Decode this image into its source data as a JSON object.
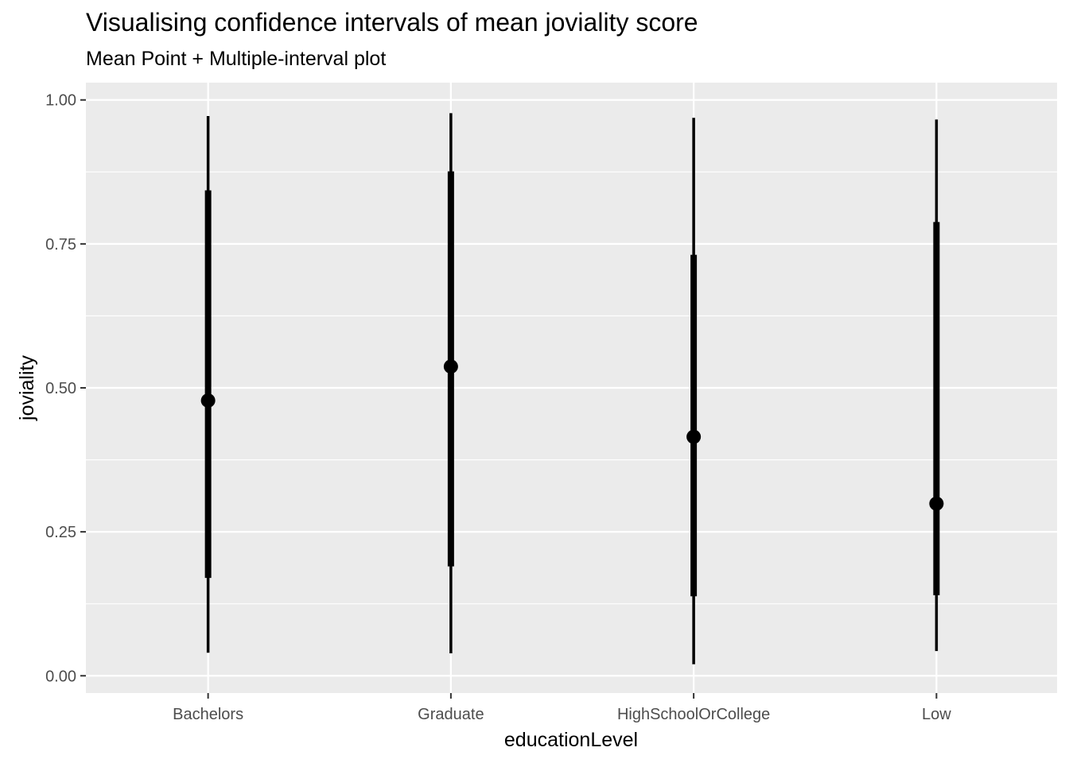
{
  "chart_data": {
    "type": "pointrange",
    "title": "Visualising confidence intervals of mean joviality score",
    "subtitle": "Mean Point + Multiple-interval plot",
    "xlabel": "educationLevel",
    "ylabel": "joviality",
    "categories": [
      "Bachelors",
      "Graduate",
      "HighSchoolOrCollege",
      "Low"
    ],
    "ylim": [
      -0.03,
      1.03
    ],
    "yticks": [
      0.0,
      0.25,
      0.5,
      0.75,
      1.0
    ],
    "ytick_labels": [
      "0.00",
      "0.25",
      "0.50",
      "0.75",
      "1.00"
    ],
    "grid": true,
    "series": [
      {
        "means": [
          0.478,
          0.537,
          0.415,
          0.299
        ],
        "inner_low": [
          0.17,
          0.19,
          0.138,
          0.14
        ],
        "inner_high": [
          0.843,
          0.876,
          0.731,
          0.788
        ],
        "outer_low": [
          0.04,
          0.039,
          0.02,
          0.043
        ],
        "outer_high": [
          0.972,
          0.977,
          0.969,
          0.966
        ]
      }
    ],
    "colors": {
      "panel": "#ebebeb",
      "grid": "#ffffff",
      "marks": "#000000",
      "tick_text": "#4d4d4d",
      "tick_mark": "#333333"
    }
  }
}
